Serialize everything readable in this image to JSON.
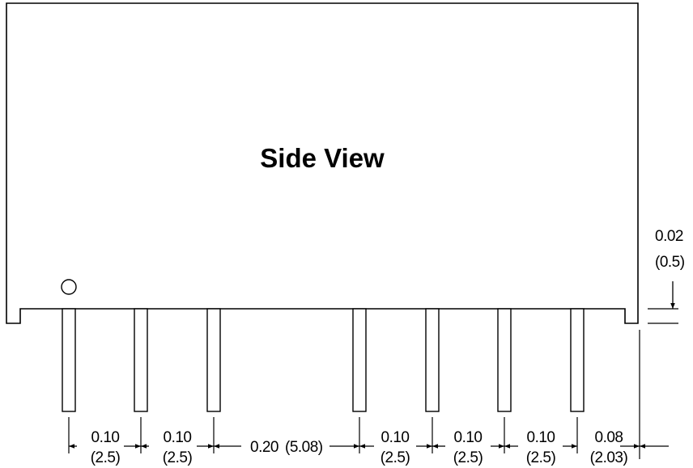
{
  "title": "Side View",
  "standoff": {
    "value": "0.02",
    "metric": "(0.5)"
  },
  "pitches": [
    {
      "value": "0.10",
      "metric": "(2.5)"
    },
    {
      "value": "0.10",
      "metric": "(2.5)"
    },
    {
      "value": "0.20",
      "metric": "(5.08)"
    },
    {
      "value": "0.10",
      "metric": "(2.5)"
    },
    {
      "value": "0.10",
      "metric": "(2.5)"
    },
    {
      "value": "0.10",
      "metric": "(2.5)"
    },
    {
      "value": "0.08",
      "metric": "(2.03)"
    }
  ],
  "colors": {
    "stroke": "#000000",
    "background": "#ffffff"
  }
}
